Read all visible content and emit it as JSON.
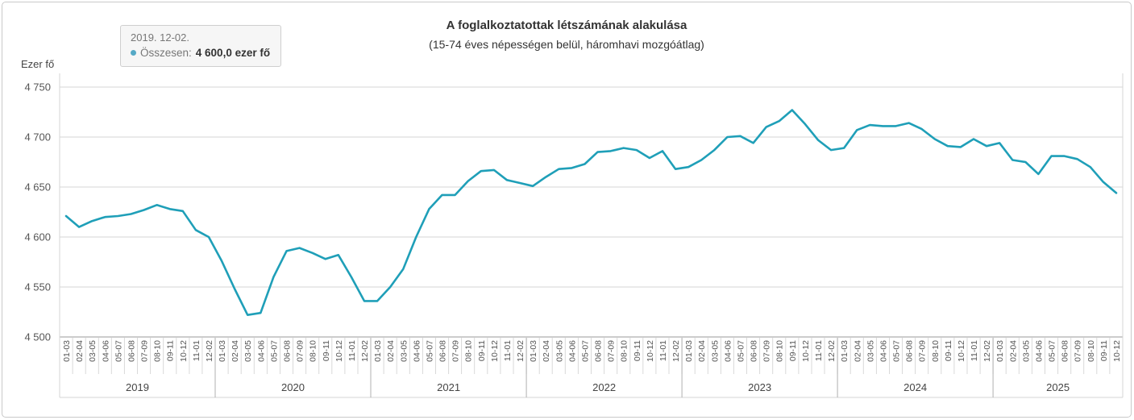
{
  "header": {
    "title": "A foglalkoztatottak létszámának alakulása",
    "subtitle": "(15-74 éves népességen belül, háromhavi mozgóátlag)"
  },
  "tooltip": {
    "date": "2019. 12-02.",
    "series_label": "Összesen:",
    "value": "4 600,0 ezer fő"
  },
  "colors": {
    "line": "#1f9fb8",
    "marker": "#55a9c6",
    "grid": "#d6d6d6",
    "tick_separator": "#d9d9d9",
    "year_separator": "#b0b0b0",
    "axis": "#999999",
    "tick_text": "#555555",
    "year_text": "#444444"
  },
  "chart_data": {
    "type": "line",
    "title": "A foglalkoztatottak létszámának alakulása",
    "subtitle": "(15-74 éves népességen belül, háromhavi mozgóátlag)",
    "ylabel": "Ezer fő",
    "xlabel": "",
    "ylim": [
      4500,
      4750
    ],
    "grid": true,
    "legend_position": "tooltip",
    "series_name": "Összesen",
    "y_ticks": [
      {
        "value": 4750,
        "label": "4 750"
      },
      {
        "value": 4700,
        "label": "4 700"
      },
      {
        "value": 4650,
        "label": "4 650"
      },
      {
        "value": 4600,
        "label": "4 600"
      },
      {
        "value": 4550,
        "label": "4 550"
      },
      {
        "value": 4500,
        "label": "4 500"
      }
    ],
    "groups": [
      {
        "year": "2019",
        "labels": [
          "01-03",
          "02-04",
          "03-05",
          "04-06",
          "05-07",
          "06-08",
          "07-09",
          "08-10",
          "09-11",
          "10-12",
          "11-01",
          "12-02"
        ],
        "values": [
          4621,
          4610,
          4616,
          4620,
          4621,
          4623,
          4627,
          4632,
          4628,
          4626,
          4607,
          4600
        ]
      },
      {
        "year": "2020",
        "labels": [
          "01-03",
          "02-04",
          "03-05",
          "04-06",
          "05-07",
          "06-08",
          "07-09",
          "08-10",
          "09-11",
          "10-12",
          "11-01",
          "12-02"
        ],
        "values": [
          4576,
          4548,
          4522,
          4524,
          4560,
          4586,
          4589,
          4584,
          4578,
          4582,
          4560,
          4536
        ]
      },
      {
        "year": "2021",
        "labels": [
          "01-03",
          "02-04",
          "03-05",
          "04-06",
          "05-07",
          "06-08",
          "07-09",
          "08-10",
          "09-11",
          "10-12",
          "11-01",
          "12-02"
        ],
        "values": [
          4536,
          4550,
          4568,
          4600,
          4628,
          4642,
          4642,
          4656,
          4666,
          4667,
          4657,
          4654
        ]
      },
      {
        "year": "2022",
        "labels": [
          "01-03",
          "02-04",
          "03-05",
          "04-06",
          "05-07",
          "06-08",
          "07-09",
          "08-10",
          "09-11",
          "10-12",
          "11-01",
          "12-02"
        ],
        "values": [
          4651,
          4660,
          4668,
          4669,
          4673,
          4685,
          4686,
          4689,
          4687,
          4679,
          4686,
          4668
        ]
      },
      {
        "year": "2023",
        "labels": [
          "01-03",
          "02-04",
          "03-05",
          "04-06",
          "05-07",
          "06-08",
          "07-09",
          "08-10",
          "09-11",
          "10-12",
          "11-01",
          "12-02"
        ],
        "values": [
          4670,
          4677,
          4687,
          4700,
          4701,
          4694,
          4710,
          4716,
          4727,
          4713,
          4697,
          4687
        ]
      },
      {
        "year": "2024",
        "labels": [
          "01-03",
          "02-04",
          "03-05",
          "04-06",
          "05-07",
          "06-08",
          "07-09",
          "08-10",
          "09-11",
          "10-12",
          "11-01",
          "12-02"
        ],
        "values": [
          4689,
          4707,
          4712,
          4711,
          4711,
          4714,
          4708,
          4698,
          4691,
          4690,
          4698,
          4691
        ]
      },
      {
        "year": "2025",
        "labels": [
          "01-03",
          "02-04",
          "03-05",
          "04-06",
          "05-07",
          "06-08",
          "07-09",
          "08-10",
          "09-11",
          "10-12"
        ],
        "values": [
          4694,
          4677,
          4675,
          4663,
          4681,
          4681,
          4678,
          4670,
          4655,
          4644
        ]
      }
    ]
  }
}
